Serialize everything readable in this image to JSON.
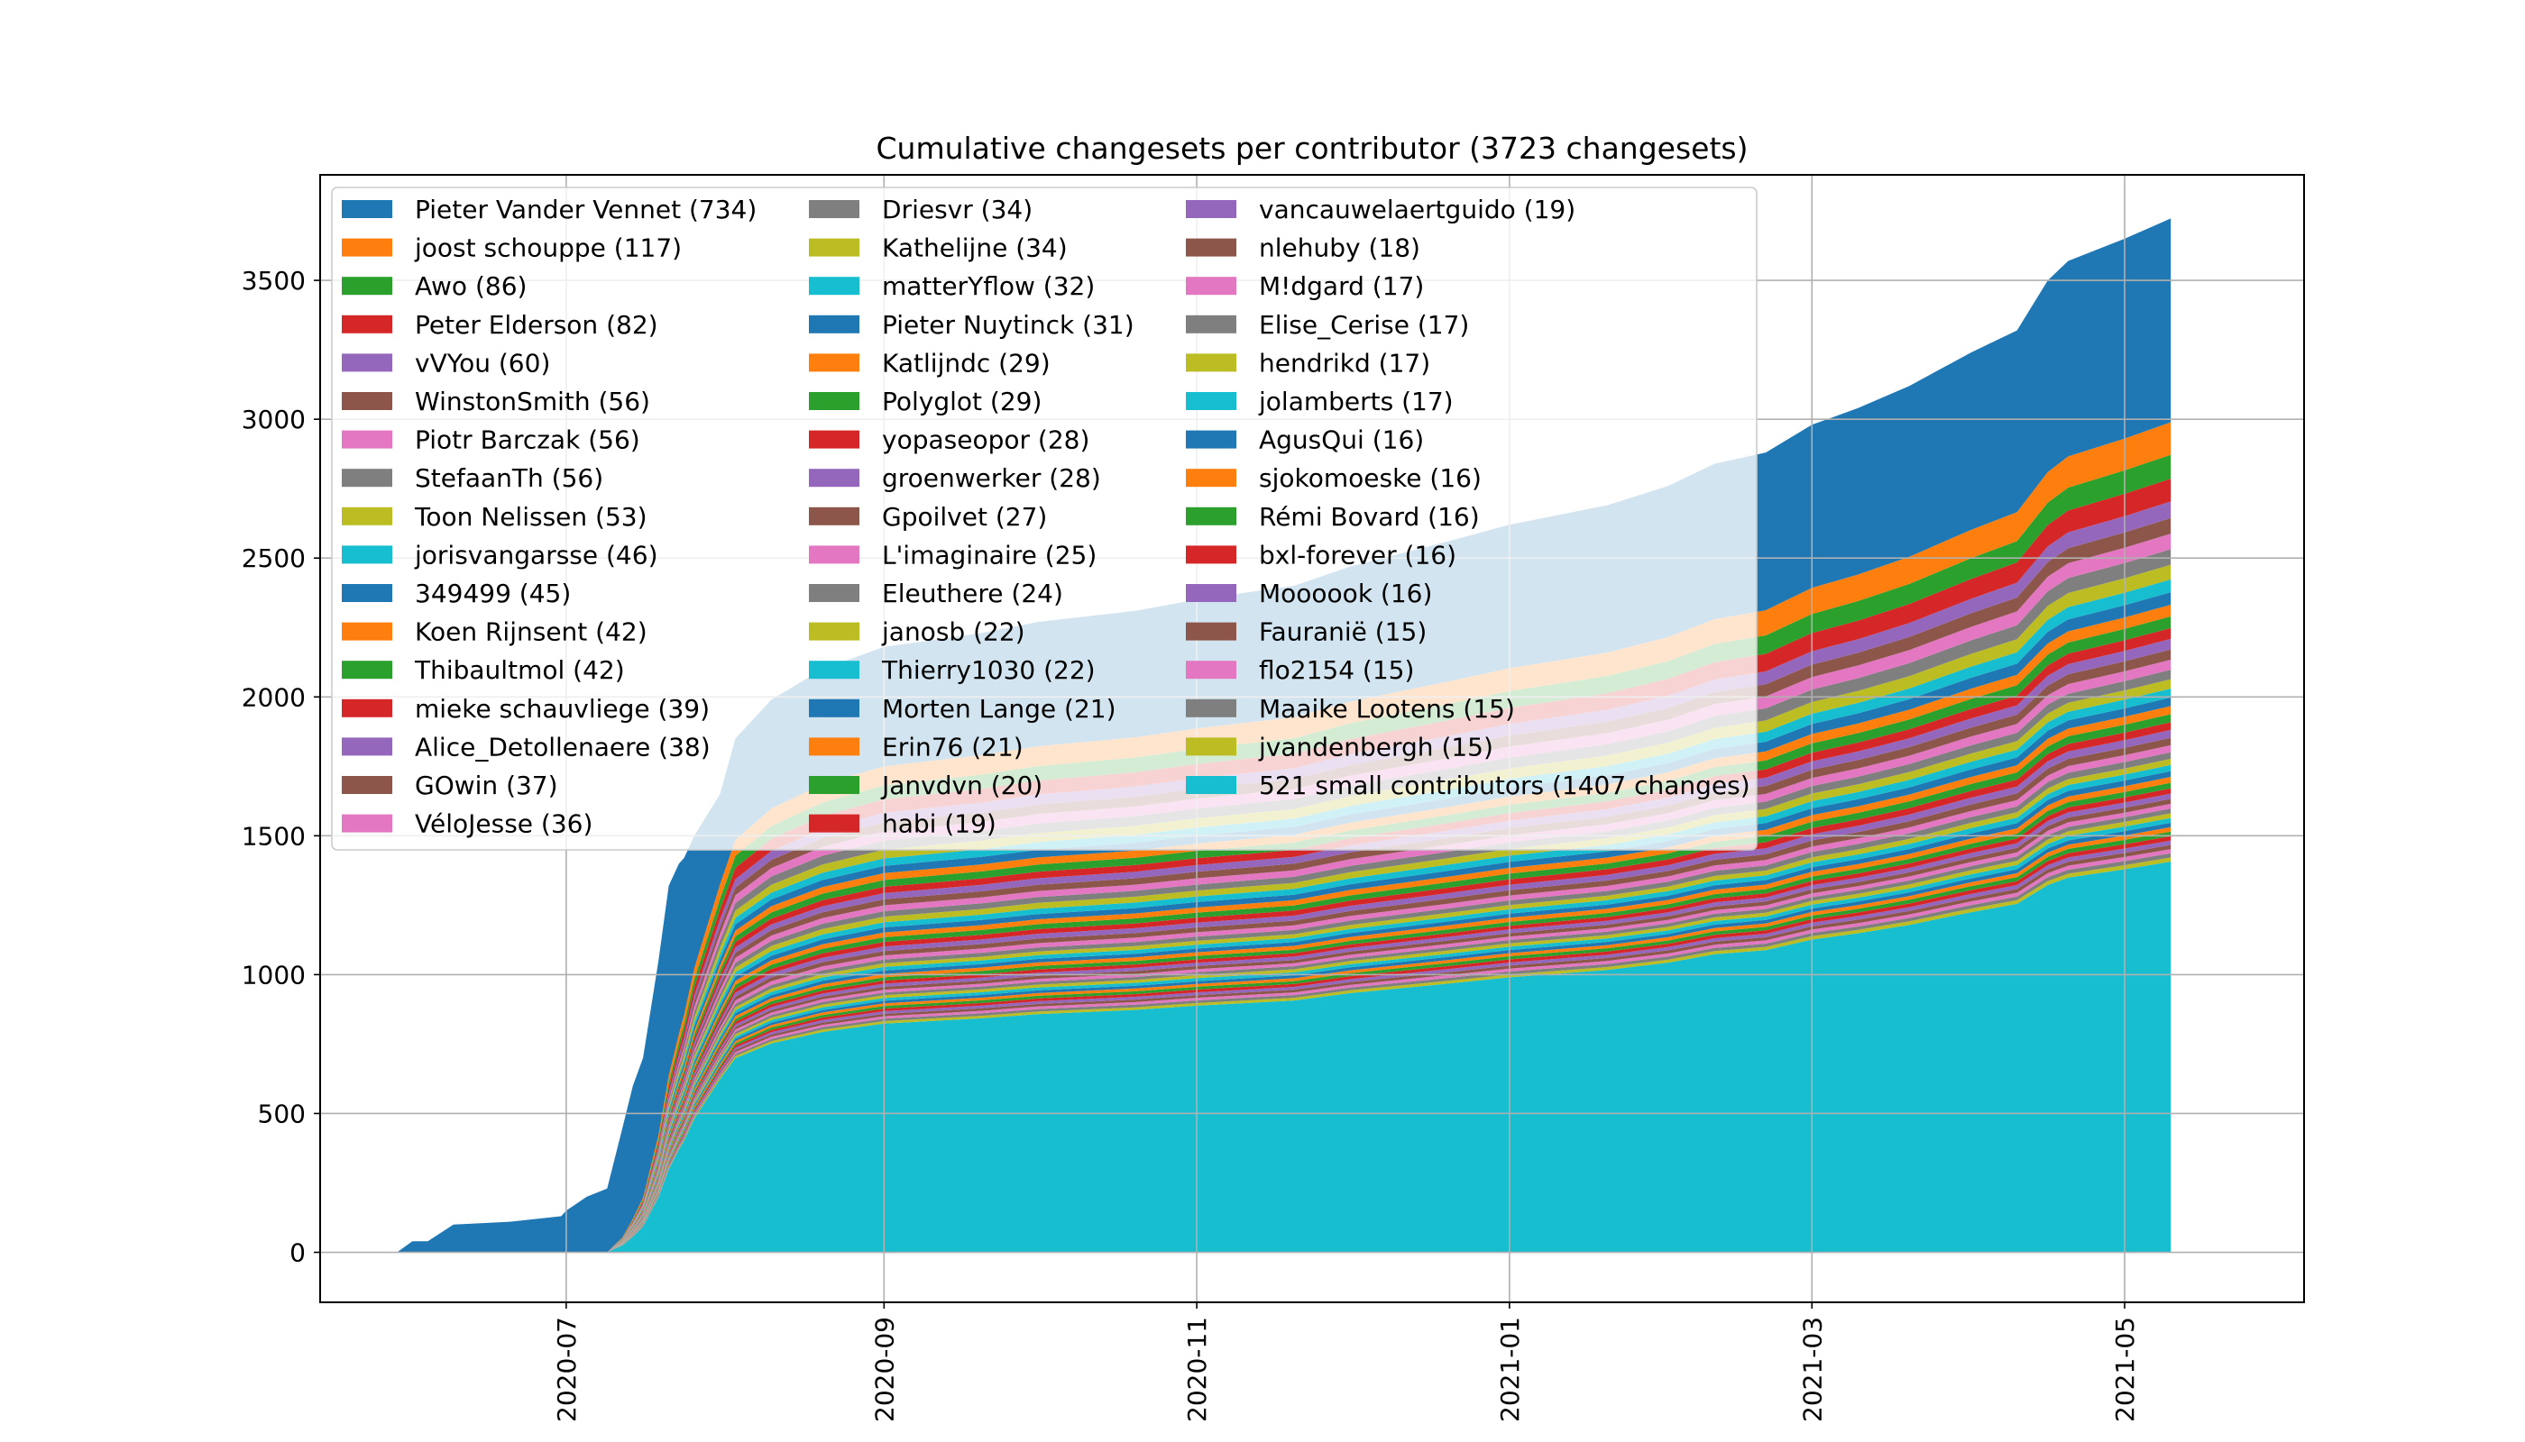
{
  "chart_data": {
    "type": "area",
    "stacked": true,
    "title": "Cumulative changesets per contributor (3723 changesets)",
    "xlabel": "",
    "ylabel": "",
    "x_range": [
      "2020-05-14",
      "2021-06-05"
    ],
    "ylim": [
      -180,
      3880
    ],
    "y_ticks": [
      0,
      500,
      1000,
      1500,
      2000,
      2500,
      3000,
      3500
    ],
    "x_ticks": [
      {
        "date": "2020-07-01",
        "label": "2020-07"
      },
      {
        "date": "2020-09-01",
        "label": "2020-09"
      },
      {
        "date": "2020-11-01",
        "label": "2020-11"
      },
      {
        "date": "2021-01-01",
        "label": "2021-01"
      },
      {
        "date": "2021-03-01",
        "label": "2021-03"
      },
      {
        "date": "2021-05-01",
        "label": "2021-05"
      }
    ],
    "grid": true,
    "legend_position": "top-left",
    "legend_columns": 3,
    "palette": [
      "#1f77b4",
      "#ff7f0e",
      "#2ca02c",
      "#d62728",
      "#9467bd",
      "#8c564b",
      "#e377c2",
      "#7f7f7f",
      "#bcbd22",
      "#17becf"
    ],
    "total": {
      "dates": [
        "2020-05-29",
        "2020-06-01",
        "2020-06-04",
        "2020-06-09",
        "2020-06-20",
        "2020-06-30",
        "2020-07-01",
        "2020-07-05",
        "2020-07-09",
        "2020-07-12",
        "2020-07-14",
        "2020-07-16",
        "2020-07-19",
        "2020-07-21",
        "2020-07-23",
        "2020-07-24",
        "2020-07-26",
        "2020-07-31",
        "2020-08-03",
        "2020-08-10",
        "2020-08-20",
        "2020-09-01",
        "2020-09-20",
        "2020-10-01",
        "2020-10-20",
        "2020-11-01",
        "2020-11-20",
        "2020-12-01",
        "2020-12-20",
        "2021-01-01",
        "2021-01-20",
        "2021-02-01",
        "2021-02-10",
        "2021-02-20",
        "2021-03-01",
        "2021-03-10",
        "2021-03-20",
        "2021-04-01",
        "2021-04-10",
        "2021-04-16",
        "2021-04-20",
        "2021-05-01",
        "2021-05-10"
      ],
      "values": [
        0,
        40,
        40,
        100,
        110,
        130,
        150,
        200,
        230,
        450,
        600,
        700,
        1050,
        1320,
        1400,
        1420,
        1500,
        1650,
        1850,
        1990,
        2100,
        2180,
        2230,
        2270,
        2310,
        2350,
        2400,
        2470,
        2560,
        2620,
        2690,
        2760,
        2840,
        2880,
        2980,
        3040,
        3120,
        3240,
        3320,
        3500,
        3570,
        3650,
        3723
      ]
    },
    "series": [
      {
        "name": "Pieter Vander Vennet (734)",
        "value": 734
      },
      {
        "name": "joost schouppe (117)",
        "value": 117
      },
      {
        "name": "Awo (86)",
        "value": 86
      },
      {
        "name": "Peter Elderson (82)",
        "value": 82
      },
      {
        "name": "vVYou (60)",
        "value": 60
      },
      {
        "name": "WinstonSmith (56)",
        "value": 56
      },
      {
        "name": "Piotr Barczak (56)",
        "value": 56
      },
      {
        "name": "StefaanTh (56)",
        "value": 56
      },
      {
        "name": "Toon Nelissen (53)",
        "value": 53
      },
      {
        "name": "jorisvangarsse (46)",
        "value": 46
      },
      {
        "name": "349499 (45)",
        "value": 45
      },
      {
        "name": "Koen Rijnsent (42)",
        "value": 42
      },
      {
        "name": "Thibaultmol (42)",
        "value": 42
      },
      {
        "name": "mieke schauvliege (39)",
        "value": 39
      },
      {
        "name": "Alice_Detollenaere (38)",
        "value": 38
      },
      {
        "name": "GOwin (37)",
        "value": 37
      },
      {
        "name": "VéloJesse (36)",
        "value": 36
      },
      {
        "name": "Driesvr (34)",
        "value": 34
      },
      {
        "name": "Kathelijne (34)",
        "value": 34
      },
      {
        "name": "matterYflow (32)",
        "value": 32
      },
      {
        "name": "Pieter Nuytinck (31)",
        "value": 31
      },
      {
        "name": "Katlijndc (29)",
        "value": 29
      },
      {
        "name": "Polyglot (29)",
        "value": 29
      },
      {
        "name": "yopaseopor (28)",
        "value": 28
      },
      {
        "name": "groenwerker (28)",
        "value": 28
      },
      {
        "name": "Gpoilvet (27)",
        "value": 27
      },
      {
        "name": "L'imaginaire (25)",
        "value": 25
      },
      {
        "name": "Eleuthere (24)",
        "value": 24
      },
      {
        "name": "janosb (22)",
        "value": 22
      },
      {
        "name": "Thierry1030 (22)",
        "value": 22
      },
      {
        "name": "Morten Lange (21)",
        "value": 21
      },
      {
        "name": "Erin76 (21)",
        "value": 21
      },
      {
        "name": "Janvdvn (20)",
        "value": 20
      },
      {
        "name": "habi (19)",
        "value": 19
      },
      {
        "name": "vancauwelaertguido (19)",
        "value": 19
      },
      {
        "name": "nlehuby (18)",
        "value": 18
      },
      {
        "name": "M!dgard (17)",
        "value": 17
      },
      {
        "name": "Elise_Cerise (17)",
        "value": 17
      },
      {
        "name": "hendrikd (17)",
        "value": 17
      },
      {
        "name": "jolamberts (17)",
        "value": 17
      },
      {
        "name": "AgusQui (16)",
        "value": 16
      },
      {
        "name": "sjokomoeske (16)",
        "value": 16
      },
      {
        "name": "Rémi Bovard (16)",
        "value": 16
      },
      {
        "name": "bxl-forever (16)",
        "value": 16
      },
      {
        "name": "Moooook (16)",
        "value": 16
      },
      {
        "name": "Fauranië (15)",
        "value": 15
      },
      {
        "name": "flo2154 (15)",
        "value": 15
      },
      {
        "name": "Maaike Lootens (15)",
        "value": 15
      },
      {
        "name": "jvandenbergh (15)",
        "value": 15
      },
      {
        "name": "521 small contributors (1407 changes)",
        "value": 1407
      }
    ]
  }
}
